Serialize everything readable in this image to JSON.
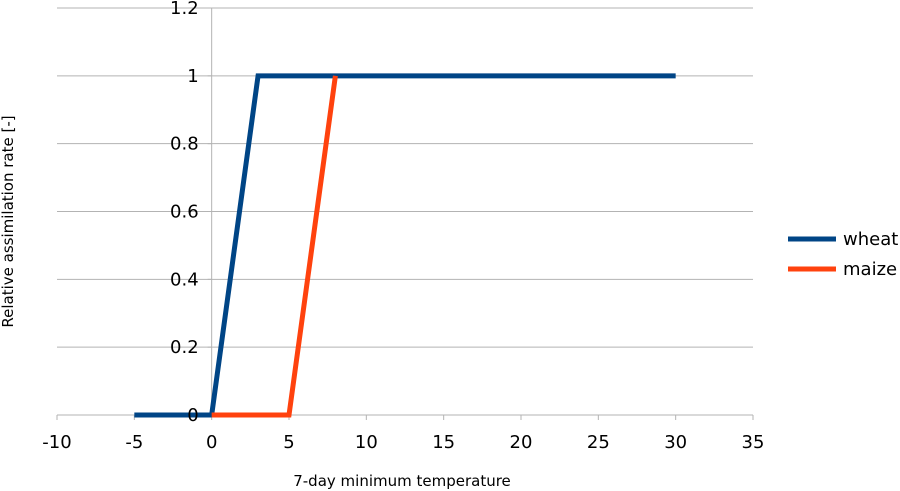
{
  "chart_data": {
    "type": "line",
    "title": "",
    "xlabel": "7-day minimum temperature",
    "ylabel": "Relative assimilation rate [-]",
    "xlim": [
      -10,
      35
    ],
    "ylim": [
      0,
      1.2
    ],
    "x_ticks": [
      -10,
      -5,
      0,
      5,
      10,
      15,
      20,
      25,
      30,
      35
    ],
    "x_tick_labels": [
      "-10",
      "-5",
      "0",
      "5",
      "10",
      "15",
      "20",
      "25",
      "30",
      "35"
    ],
    "y_ticks": [
      0,
      0.2,
      0.4,
      0.6,
      0.8,
      1,
      1.2
    ],
    "y_tick_labels": [
      "0",
      "0.2",
      "0.4",
      "0.6",
      "0.8",
      "1",
      "1.2"
    ],
    "grid": "horizontal",
    "legend_position": "right",
    "series": [
      {
        "name": "wheat",
        "color": "#004586",
        "x": [
          -5,
          0,
          3,
          30
        ],
        "y": [
          0,
          0,
          1,
          1
        ]
      },
      {
        "name": "maize",
        "color": "#ff420e",
        "x": [
          0,
          5,
          8
        ],
        "y": [
          0,
          0,
          1
        ]
      }
    ]
  }
}
